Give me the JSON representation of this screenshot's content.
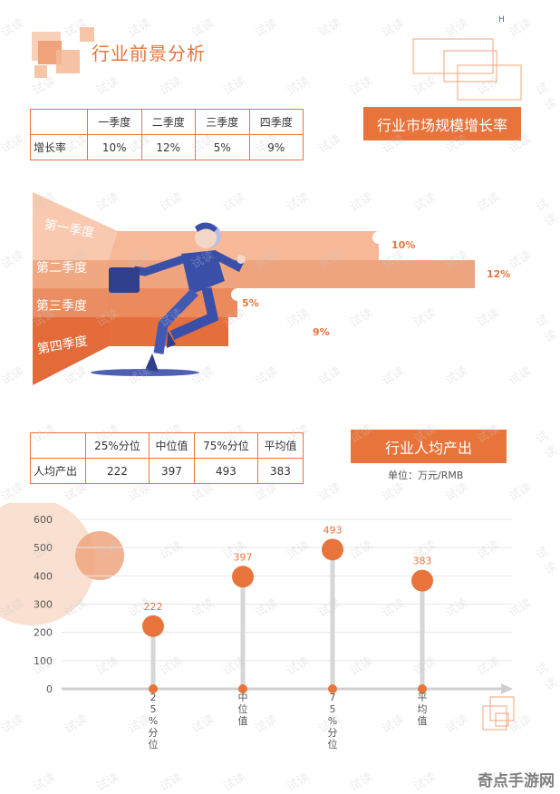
{
  "header": {
    "title": "行业前景分析",
    "corner_letter": "H"
  },
  "growth_table": {
    "columns": [
      "",
      "一季度",
      "二季度",
      "三季度",
      "四季度"
    ],
    "row_label": "增长率",
    "values": [
      "10%",
      "12%",
      "5%",
      "9%"
    ]
  },
  "growth_label": "行业市场规模增长率",
  "funnel": {
    "quarters": [
      "第一季度",
      "第二季度",
      "第三季度",
      "第四季度"
    ],
    "values": [
      "10%",
      "12%",
      "5%",
      "9%"
    ]
  },
  "output_table": {
    "columns": [
      "",
      "25%分位",
      "中位值",
      "75%分位",
      "平均值"
    ],
    "row_label": "人均产出",
    "values": [
      "222",
      "397",
      "493",
      "383"
    ]
  },
  "output_label": "行业人均产出",
  "unit_text": "单位：万元/RMB",
  "chart_data": {
    "type": "scatter",
    "categories": [
      "25%分位",
      "中位值",
      "75%分位",
      "平均值"
    ],
    "values": [
      222,
      397,
      493,
      383
    ],
    "ylim": [
      0,
      600
    ],
    "yticks": [
      0,
      100,
      200,
      300,
      400,
      500,
      600
    ],
    "grid": true,
    "colors": {
      "accent": "#e8743b",
      "stem": "#d6d6d6"
    }
  },
  "watermark_text": "试读",
  "corner_watermark": "奇点手游网",
  "colors": {
    "accent": "#e8743b",
    "accent_light": "#f2a57b",
    "accent_dark": "#e0602a"
  }
}
